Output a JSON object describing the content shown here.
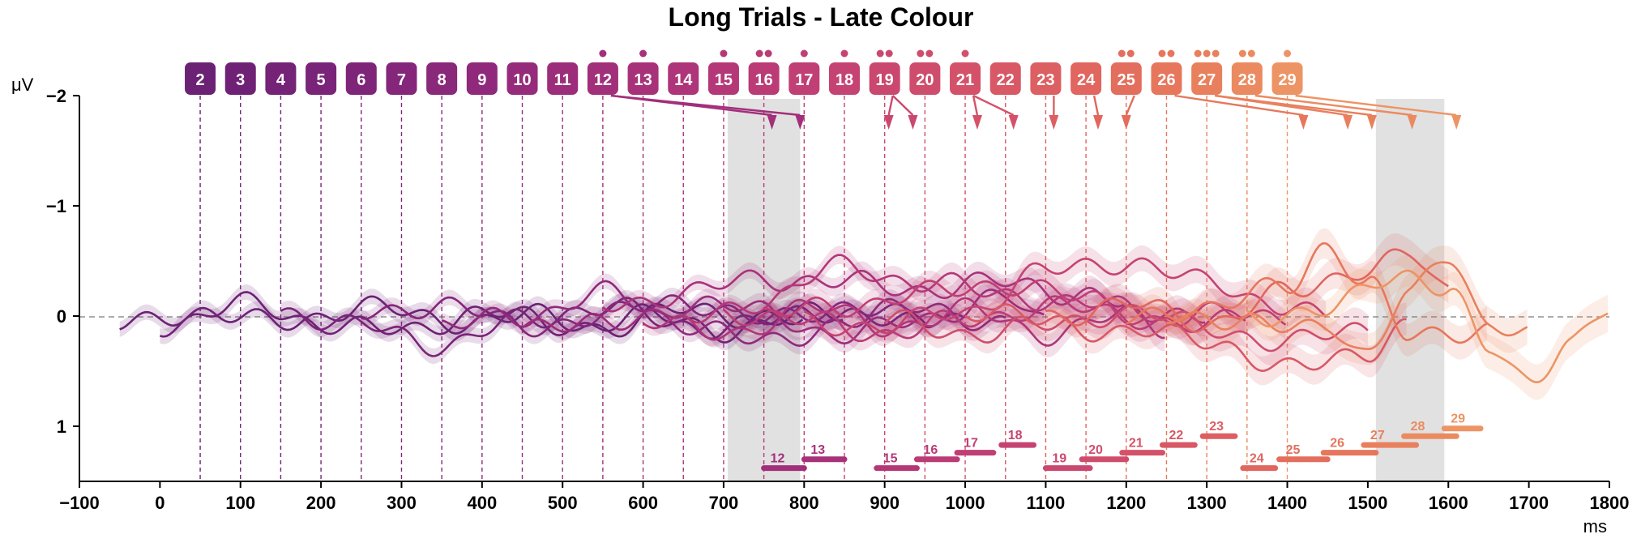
{
  "chart_data": {
    "type": "line",
    "title": "Long Trials - Late Colour",
    "xlabel": "ms",
    "ylabel": "μV",
    "xlim": [
      -100,
      1800
    ],
    "ylim": [
      -2,
      1.5
    ],
    "y_inverted": true,
    "x_ticks": [
      -100,
      0,
      100,
      200,
      300,
      400,
      500,
      600,
      700,
      800,
      900,
      1000,
      1100,
      1200,
      1300,
      1400,
      1500,
      1600,
      1700,
      1800
    ],
    "x_tick_labels": [
      "−100",
      "0",
      "100",
      "200",
      "300",
      "400",
      "500",
      "600",
      "700",
      "800",
      "900",
      "1000",
      "1100",
      "1200",
      "1300",
      "1400",
      "1500",
      "1600",
      "1700",
      "1800"
    ],
    "y_ticks": [
      -2,
      -1,
      0,
      1
    ],
    "y_tick_labels": [
      "−2",
      "−1",
      "0",
      "1"
    ],
    "shaded_windows": [
      [
        705,
        795
      ],
      [
        1510,
        1595
      ]
    ],
    "colors": {
      "2": "#6b2274",
      "3": "#6f2275",
      "4": "#742377",
      "5": "#792478",
      "6": "#7f2579",
      "7": "#84267a",
      "8": "#8a287a",
      "9": "#90297b",
      "10": "#962b7b",
      "11": "#9c2d7b",
      "12": "#a22f7a",
      "13": "#a8327a",
      "14": "#ae3579",
      "15": "#b43878",
      "16": "#ba3b76",
      "17": "#c03f74",
      "18": "#c54372",
      "19": "#ca486f",
      "20": "#cf4d6c",
      "21": "#d45269",
      "22": "#d85866",
      "23": "#dc5f62",
      "24": "#e0665f",
      "25": "#e36e5d",
      "26": "#e6775c",
      "27": "#e9805d",
      "28": "#eb8a60",
      "29": "#ed9465",
      "30": "#efa06c",
      "31": "#f0ab75"
    },
    "markers": [
      {
        "label": "2",
        "x": 50
      },
      {
        "label": "3",
        "x": 100
      },
      {
        "label": "4",
        "x": 150
      },
      {
        "label": "5",
        "x": 200
      },
      {
        "label": "6",
        "x": 250
      },
      {
        "label": "7",
        "x": 300
      },
      {
        "label": "8",
        "x": 350
      },
      {
        "label": "9",
        "x": 400
      },
      {
        "label": "10",
        "x": 450
      },
      {
        "label": "11",
        "x": 500
      },
      {
        "label": "12",
        "x": 550,
        "dots": 1
      },
      {
        "label": "13",
        "x": 600,
        "dots": 1
      },
      {
        "label": "14",
        "x": 650
      },
      {
        "label": "15",
        "x": 700,
        "dots": 1
      },
      {
        "label": "16",
        "x": 750,
        "dots": 2
      },
      {
        "label": "17",
        "x": 800,
        "dots": 1
      },
      {
        "label": "18",
        "x": 850,
        "dots": 1
      },
      {
        "label": "19",
        "x": 900,
        "dots": 2
      },
      {
        "label": "20",
        "x": 950,
        "dots": 2
      },
      {
        "label": "21",
        "x": 1000,
        "dots": 1
      },
      {
        "label": "22",
        "x": 1050
      },
      {
        "label": "23",
        "x": 1100
      },
      {
        "label": "24",
        "x": 1150
      },
      {
        "label": "25",
        "x": 1200,
        "dots": 2
      },
      {
        "label": "26",
        "x": 1250,
        "dots": 2
      },
      {
        "label": "27",
        "x": 1300,
        "dots": 3
      },
      {
        "label": "28",
        "x": 1350,
        "dots": 2
      },
      {
        "label": "29",
        "x": 1400,
        "dots": 1
      }
    ],
    "pointers": [
      {
        "label": "12",
        "to": 760
      },
      {
        "label": "12",
        "to": 795
      },
      {
        "label": "19",
        "to": 905
      },
      {
        "label": "19",
        "to": 935
      },
      {
        "label": "21",
        "to": 1015
      },
      {
        "label": "21",
        "to": 1060
      },
      {
        "label": "23",
        "to": 1110
      },
      {
        "label": "24",
        "to": 1165
      },
      {
        "label": "25",
        "to": 1200
      },
      {
        "label": "26",
        "to": 1420
      },
      {
        "label": "27",
        "to": 1475
      },
      {
        "label": "27",
        "to": 1505
      },
      {
        "label": "28",
        "to": 1555
      },
      {
        "label": "29",
        "to": 1610
      }
    ],
    "sig_bars": [
      {
        "label": "12",
        "x0": 750,
        "x1": 800,
        "y": 1.38
      },
      {
        "label": "13",
        "x0": 800,
        "x1": 850,
        "y": 1.3
      },
      {
        "label": "15",
        "x0": 890,
        "x1": 940,
        "y": 1.38
      },
      {
        "label": "16",
        "x0": 940,
        "x1": 990,
        "y": 1.3
      },
      {
        "label": "17",
        "x0": 990,
        "x1": 1035,
        "y": 1.24
      },
      {
        "label": "18",
        "x0": 1045,
        "x1": 1085,
        "y": 1.17
      },
      {
        "label": "19",
        "x0": 1100,
        "x1": 1155,
        "y": 1.38
      },
      {
        "label": "20",
        "x0": 1145,
        "x1": 1200,
        "y": 1.3
      },
      {
        "label": "21",
        "x0": 1195,
        "x1": 1245,
        "y": 1.24
      },
      {
        "label": "22",
        "x0": 1245,
        "x1": 1285,
        "y": 1.17
      },
      {
        "label": "23",
        "x0": 1295,
        "x1": 1335,
        "y": 1.09
      },
      {
        "label": "24",
        "x0": 1345,
        "x1": 1385,
        "y": 1.38
      },
      {
        "label": "25",
        "x0": 1390,
        "x1": 1450,
        "y": 1.3
      },
      {
        "label": "26",
        "x0": 1445,
        "x1": 1510,
        "y": 1.24
      },
      {
        "label": "27",
        "x0": 1495,
        "x1": 1560,
        "y": 1.17
      },
      {
        "label": "28",
        "x0": 1545,
        "x1": 1610,
        "y": 1.09
      },
      {
        "label": "29",
        "x0": 1595,
        "x1": 1640,
        "y": 1.02
      }
    ],
    "series": [
      {
        "key": "2",
        "x_start": -50,
        "x_end": 800,
        "points": [
          [
            -50,
            0.1
          ],
          [
            50,
            -0.05
          ],
          [
            150,
            0.08
          ],
          [
            250,
            -0.1
          ],
          [
            350,
            0.05
          ],
          [
            450,
            0.0
          ],
          [
            550,
            0.1
          ],
          [
            650,
            -0.05
          ],
          [
            750,
            0.0
          ],
          [
            800,
            0.05
          ]
        ]
      },
      {
        "key": "3",
        "x_start": 0,
        "x_end": 850,
        "points": [
          [
            0,
            0.08
          ],
          [
            100,
            -0.1
          ],
          [
            200,
            0.05
          ],
          [
            300,
            0.15
          ],
          [
            400,
            -0.05
          ],
          [
            500,
            0.1
          ],
          [
            600,
            0.0
          ],
          [
            700,
            0.12
          ],
          [
            850,
            -0.05
          ]
        ]
      },
      {
        "key": "5",
        "x_start": 150,
        "x_end": 950,
        "points": [
          [
            150,
            -0.05
          ],
          [
            250,
            0.1
          ],
          [
            350,
            0.25
          ],
          [
            450,
            0.05
          ],
          [
            550,
            -0.1
          ],
          [
            650,
            0.1
          ],
          [
            750,
            0.05
          ],
          [
            850,
            -0.05
          ],
          [
            950,
            0.1
          ]
        ]
      },
      {
        "key": "7",
        "x_start": 250,
        "x_end": 1000,
        "points": [
          [
            250,
            0.0
          ],
          [
            350,
            -0.12
          ],
          [
            450,
            0.1
          ],
          [
            550,
            0.0
          ],
          [
            650,
            -0.15
          ],
          [
            750,
            0.05
          ],
          [
            850,
            -0.1
          ],
          [
            950,
            0.05
          ],
          [
            1000,
            0.0
          ]
        ]
      },
      {
        "key": "9",
        "x_start": 350,
        "x_end": 1050,
        "points": [
          [
            350,
            0.1
          ],
          [
            450,
            0.0
          ],
          [
            550,
            -0.2
          ],
          [
            650,
            0.05
          ],
          [
            750,
            0.25
          ],
          [
            850,
            0.05
          ],
          [
            950,
            -0.1
          ],
          [
            1050,
            0.1
          ]
        ]
      },
      {
        "key": "11",
        "x_start": 450,
        "x_end": 1100,
        "points": [
          [
            450,
            0.05
          ],
          [
            550,
            0.1
          ],
          [
            650,
            -0.1
          ],
          [
            750,
            -0.05
          ],
          [
            850,
            0.2
          ],
          [
            950,
            0.0
          ],
          [
            1050,
            -0.15
          ],
          [
            1100,
            0.05
          ]
        ]
      },
      {
        "key": "13",
        "x_start": 550,
        "x_end": 1200,
        "points": [
          [
            550,
            -0.1
          ],
          [
            650,
            -0.2
          ],
          [
            750,
            -0.35
          ],
          [
            850,
            -0.3
          ],
          [
            950,
            -0.25
          ],
          [
            1050,
            -0.3
          ],
          [
            1150,
            -0.2
          ],
          [
            1200,
            -0.1
          ]
        ]
      },
      {
        "key": "14",
        "x_start": 600,
        "x_end": 1250,
        "points": [
          [
            600,
            0.0
          ],
          [
            700,
            0.2
          ],
          [
            800,
            -0.1
          ],
          [
            900,
            0.1
          ],
          [
            1000,
            -0.05
          ],
          [
            1100,
            0.15
          ],
          [
            1200,
            0.0
          ],
          [
            1250,
            0.1
          ]
        ]
      },
      {
        "key": "15",
        "x_start": 650,
        "x_end": 1300,
        "points": [
          [
            650,
            0.05
          ],
          [
            750,
            -0.15
          ],
          [
            850,
            -0.45
          ],
          [
            950,
            -0.3
          ],
          [
            1050,
            -0.2
          ],
          [
            1150,
            -0.1
          ],
          [
            1250,
            -0.05
          ],
          [
            1300,
            0.0
          ]
        ]
      },
      {
        "key": "16",
        "x_start": 700,
        "x_end": 1350,
        "points": [
          [
            700,
            -0.05
          ],
          [
            800,
            0.05
          ],
          [
            900,
            0.15
          ],
          [
            1000,
            0.05
          ],
          [
            1100,
            -0.1
          ],
          [
            1200,
            0.0
          ],
          [
            1300,
            0.1
          ],
          [
            1350,
            0.0
          ]
        ]
      },
      {
        "key": "17",
        "x_start": 750,
        "x_end": 1400,
        "points": [
          [
            750,
            0.0
          ],
          [
            850,
            -0.1
          ],
          [
            950,
            -0.2
          ],
          [
            1050,
            -0.3
          ],
          [
            1150,
            -0.15
          ],
          [
            1250,
            0.05
          ],
          [
            1350,
            -0.05
          ],
          [
            1400,
            0.0
          ]
        ]
      },
      {
        "key": "18",
        "x_start": 800,
        "x_end": 1450,
        "points": [
          [
            800,
            0.05
          ],
          [
            900,
            0.1
          ],
          [
            1000,
            -0.05
          ],
          [
            1100,
            -0.4
          ],
          [
            1200,
            -0.5
          ],
          [
            1300,
            -0.3
          ],
          [
            1400,
            -0.1
          ],
          [
            1450,
            0.05
          ]
        ]
      },
      {
        "key": "20",
        "x_start": 900,
        "x_end": 1500,
        "points": [
          [
            900,
            0.05
          ],
          [
            1000,
            0.15
          ],
          [
            1100,
            0.1
          ],
          [
            1200,
            -0.05
          ],
          [
            1300,
            0.1
          ],
          [
            1400,
            0.25
          ],
          [
            1500,
            0.1
          ]
        ]
      },
      {
        "key": "22",
        "x_start": 1000,
        "x_end": 1550,
        "points": [
          [
            1000,
            -0.05
          ],
          [
            1100,
            0.05
          ],
          [
            1200,
            0.15
          ],
          [
            1300,
            0.2
          ],
          [
            1400,
            0.5
          ],
          [
            1500,
            0.3
          ],
          [
            1550,
            0.1
          ]
        ]
      },
      {
        "key": "24",
        "x_start": 1100,
        "x_end": 1600,
        "points": [
          [
            1100,
            0.0
          ],
          [
            1200,
            -0.1
          ],
          [
            1300,
            0.05
          ],
          [
            1400,
            -0.2
          ],
          [
            1500,
            -0.45
          ],
          [
            1550,
            -0.55
          ],
          [
            1600,
            -0.2
          ]
        ]
      },
      {
        "key": "26",
        "x_start": 1200,
        "x_end": 1650,
        "points": [
          [
            1200,
            0.05
          ],
          [
            1300,
            -0.1
          ],
          [
            1400,
            -0.25
          ],
          [
            1450,
            -0.65
          ],
          [
            1500,
            -0.3
          ],
          [
            1550,
            0.2
          ],
          [
            1650,
            0.1
          ]
        ]
      },
      {
        "key": "27",
        "x_start": 1250,
        "x_end": 1700,
        "points": [
          [
            1250,
            -0.05
          ],
          [
            1350,
            0.1
          ],
          [
            1450,
            0.05
          ],
          [
            1500,
            0.4
          ],
          [
            1550,
            -0.2
          ],
          [
            1600,
            -0.6
          ],
          [
            1650,
            0.1
          ],
          [
            1700,
            0.2
          ]
        ]
      },
      {
        "key": "29",
        "x_start": 1350,
        "x_end": 1800,
        "points": [
          [
            1350,
            0.05
          ],
          [
            1450,
            -0.1
          ],
          [
            1550,
            -0.35
          ],
          [
            1600,
            -0.3
          ],
          [
            1650,
            0.3
          ],
          [
            1700,
            0.65
          ],
          [
            1750,
            0.2
          ],
          [
            1800,
            -0.1
          ]
        ]
      }
    ]
  }
}
